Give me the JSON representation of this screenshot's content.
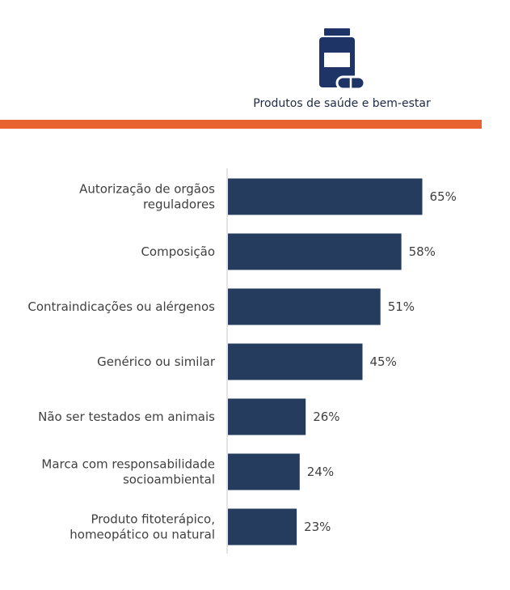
{
  "header": {
    "icon": "medicine-bottle-capsule-icon",
    "label": "Produtos de saúde e bem-estar"
  },
  "colors": {
    "bar": "#253c5e",
    "accent": "#e8632f",
    "icon": "#1e3466",
    "axis": "#c8c8c8",
    "text": "#404040"
  },
  "chart_data": {
    "type": "bar",
    "orientation": "horizontal",
    "categories": [
      [
        "Autorização de orgãos",
        "reguladores"
      ],
      [
        "Composição"
      ],
      [
        "Contraindicações ou alérgenos"
      ],
      [
        "Genérico ou similar"
      ],
      [
        "Não ser testados em animais"
      ],
      [
        "Marca com responsabilidade",
        "socioambiental"
      ],
      [
        "Produto fitoterápico,",
        "homeopático ou natural"
      ]
    ],
    "values": [
      65,
      58,
      51,
      45,
      26,
      24,
      23
    ],
    "value_labels": [
      "65%",
      "58%",
      "51%",
      "45%",
      "26%",
      "24%",
      "23%"
    ],
    "xlim": [
      0,
      100
    ],
    "grid": false,
    "legend": "none"
  }
}
